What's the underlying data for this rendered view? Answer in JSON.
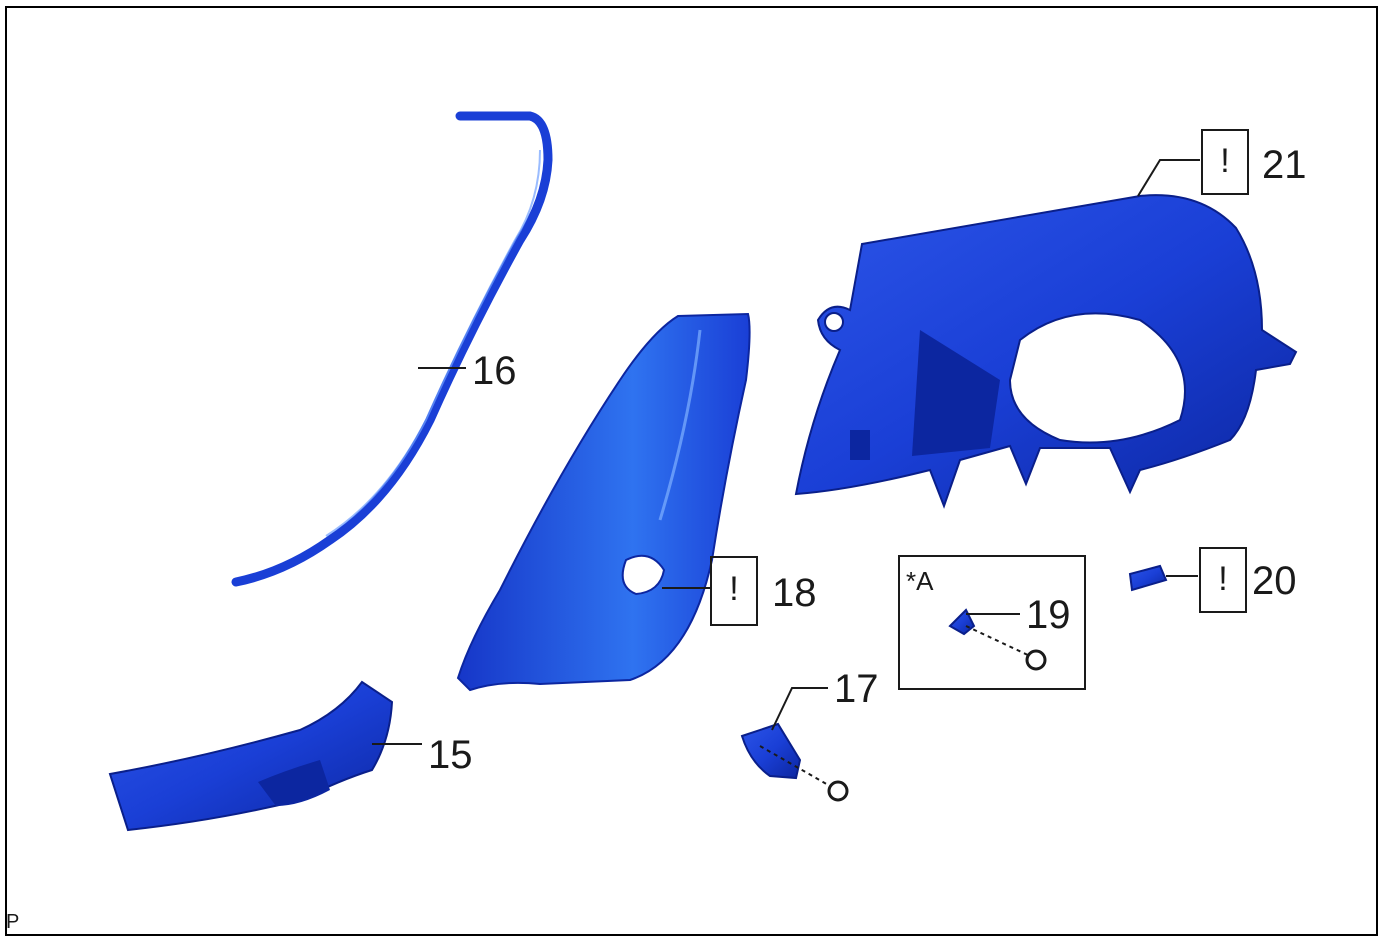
{
  "diagram": {
    "corner_mark": "P",
    "detail_label": "*A",
    "warning_glyph": "!",
    "part_color": "#1a3fd6",
    "part_highlight": "#4a8cf5",
    "part_shadow": "#0a1f8a",
    "callouts": {
      "p15": "15",
      "p16": "16",
      "p17": "17",
      "p18": "18",
      "p19": "19",
      "p20": "20",
      "p21": "21"
    }
  }
}
